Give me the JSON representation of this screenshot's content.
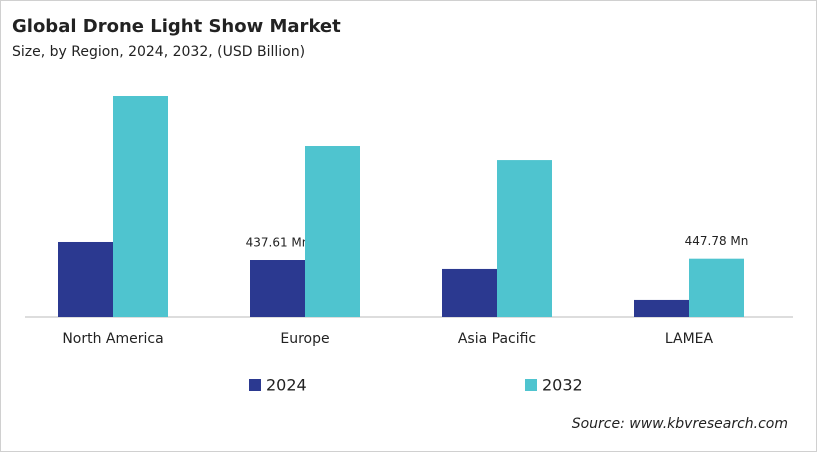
{
  "chart_data": {
    "type": "bar",
    "title": "Global Drone Light Show Market",
    "subtitle": "Size, by Region, 2024, 2032, (USD Billion)",
    "categories": [
      "North America",
      "Europe",
      "Asia Pacific",
      "LAMEA"
    ],
    "series": [
      {
        "name": "2024",
        "color": "#2b3990",
        "values": [
          576,
          437.61,
          369,
          131
        ],
        "value_labels": [
          null,
          "437.61 Mn",
          null,
          null
        ]
      },
      {
        "name": "2032",
        "color": "#4fc4cf",
        "values": [
          1697,
          1313,
          1205,
          447.78
        ],
        "value_labels": [
          null,
          null,
          null,
          "447.78 Mn"
        ]
      }
    ],
    "source": "Source: www.kbvresearch.com"
  }
}
